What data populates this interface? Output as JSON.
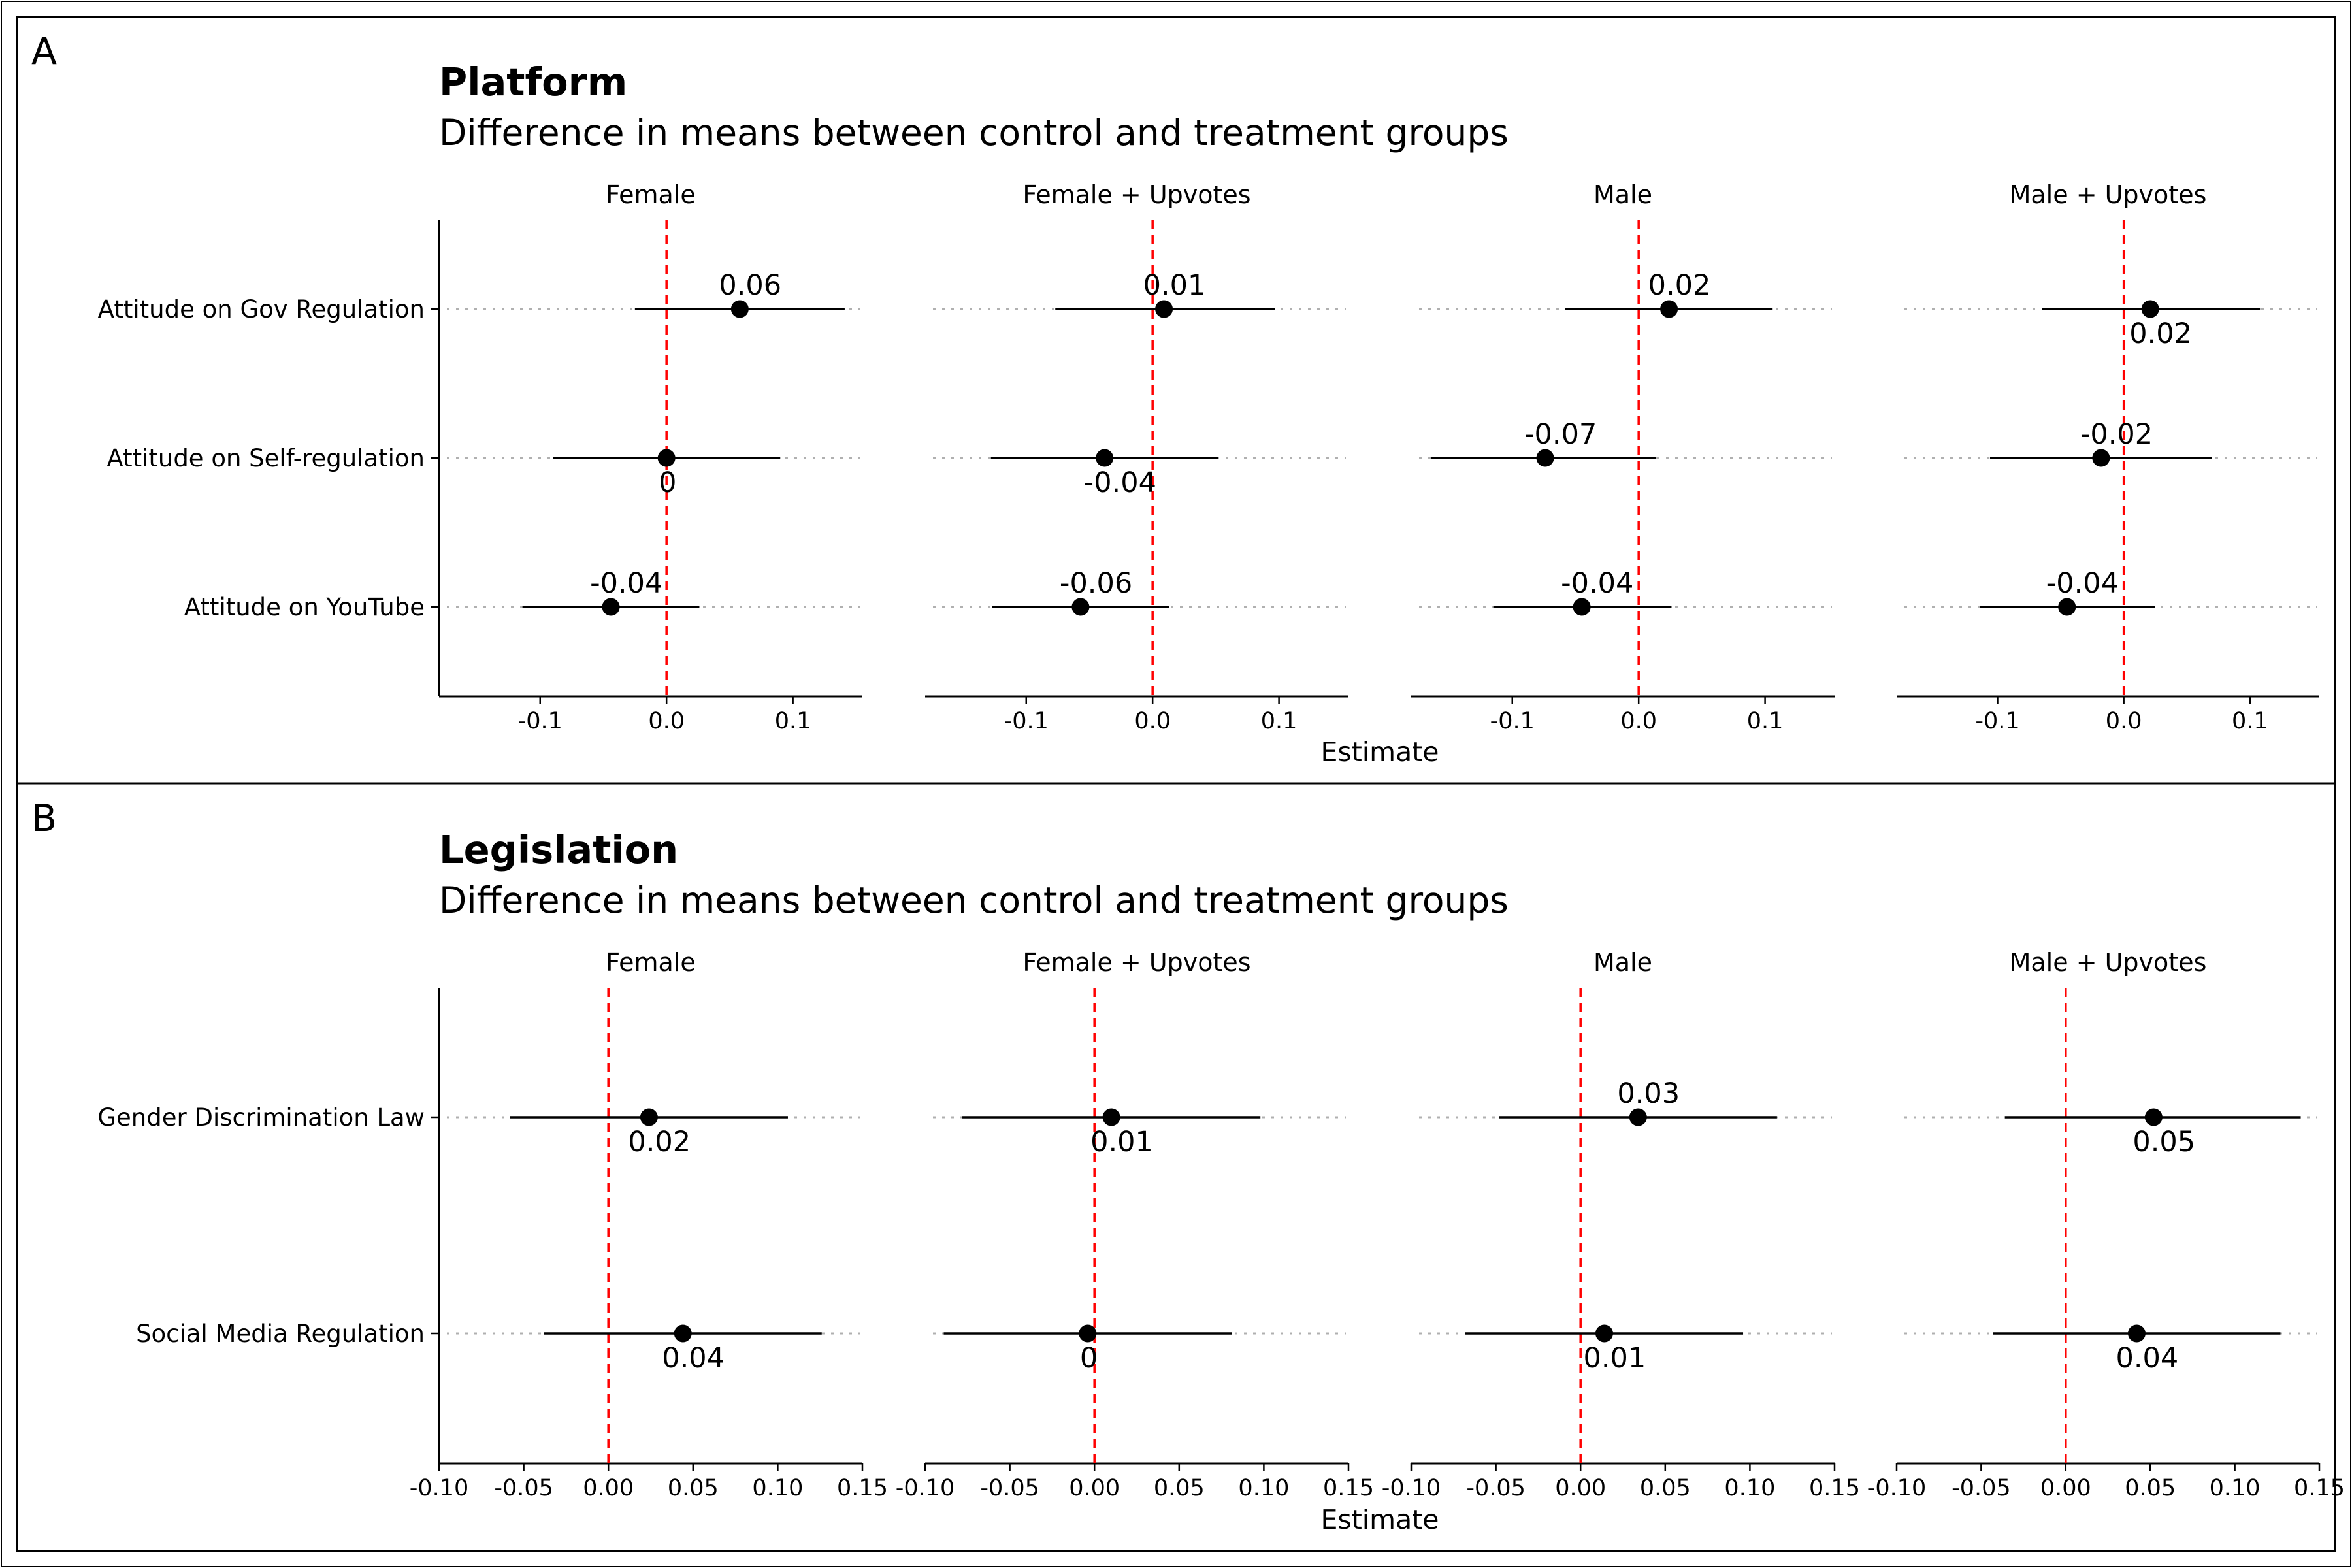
{
  "chart_data": [
    {
      "type": "scatter",
      "panel_letter": "A",
      "title": "Platform",
      "subtitle": "Difference in means between control and treatment groups",
      "xlabel": "Estimate",
      "ylabel": "",
      "xlim": [
        -0.18,
        0.155
      ],
      "xticks": [
        -0.1,
        0.0,
        0.1
      ],
      "xtick_labels": [
        "-0.1",
        "0.0",
        "0.1"
      ],
      "reference_line": 0,
      "categories": [
        "Attitude on Gov Regulation",
        "Attitude on Self-regulation",
        "Attitude on YouTube"
      ],
      "facets": [
        {
          "name": "Female",
          "points": [
            {
              "category": "Attitude on Gov Regulation",
              "estimate": 0.058,
              "ci": [
                -0.025,
                0.141
              ],
              "label": "0.06",
              "label_pos": "above"
            },
            {
              "category": "Attitude on Self-regulation",
              "estimate": 0.0,
              "ci": [
                -0.09,
                0.09
              ],
              "label": "0",
              "label_pos": "below"
            },
            {
              "category": "Attitude on YouTube",
              "estimate": -0.044,
              "ci": [
                -0.114,
                0.026
              ],
              "label": "-0.04",
              "label_pos": "above"
            }
          ]
        },
        {
          "name": "Female + Upvotes",
          "points": [
            {
              "category": "Attitude on Gov Regulation",
              "estimate": 0.009,
              "ci": [
                -0.077,
                0.097
              ],
              "label": "0.01",
              "label_pos": "above"
            },
            {
              "category": "Attitude on Self-regulation",
              "estimate": -0.038,
              "ci": [
                -0.128,
                0.052
              ],
              "label": "-0.04",
              "label_pos": "below"
            },
            {
              "category": "Attitude on YouTube",
              "estimate": -0.057,
              "ci": [
                -0.127,
                0.013
              ],
              "label": "-0.06",
              "label_pos": "above"
            }
          ]
        },
        {
          "name": "Male",
          "points": [
            {
              "category": "Attitude on Gov Regulation",
              "estimate": 0.024,
              "ci": [
                -0.058,
                0.106
              ],
              "label": "0.02",
              "label_pos": "above"
            },
            {
              "category": "Attitude on Self-regulation",
              "estimate": -0.074,
              "ci": [
                -0.164,
                0.014
              ],
              "label": "-0.07",
              "label_pos": "above"
            },
            {
              "category": "Attitude on YouTube",
              "estimate": -0.045,
              "ci": [
                -0.115,
                0.026
              ],
              "label": "-0.04",
              "label_pos": "above"
            }
          ]
        },
        {
          "name": "Male + Upvotes",
          "points": [
            {
              "category": "Attitude on Gov Regulation",
              "estimate": 0.021,
              "ci": [
                -0.065,
                0.108
              ],
              "label": "0.02",
              "label_pos": "below"
            },
            {
              "category": "Attitude on Self-regulation",
              "estimate": -0.018,
              "ci": [
                -0.106,
                0.07
              ],
              "label": "-0.02",
              "label_pos": "above"
            },
            {
              "category": "Attitude on YouTube",
              "estimate": -0.045,
              "ci": [
                -0.114,
                0.025
              ],
              "label": "-0.04",
              "label_pos": "above"
            }
          ]
        }
      ]
    },
    {
      "type": "scatter",
      "panel_letter": "B",
      "title": "Legislation",
      "subtitle": "Difference in means between control and treatment groups",
      "xlabel": "Estimate",
      "ylabel": "",
      "xlim": [
        -0.1,
        0.15
      ],
      "xticks": [
        -0.1,
        -0.05,
        0.0,
        0.05,
        0.1,
        0.15
      ],
      "xtick_labels": [
        "-0.10",
        "-0.05",
        "0.00",
        "0.05",
        "0.10",
        "0.15"
      ],
      "reference_line": 0,
      "categories": [
        "Gender Discrimination Law",
        "Social Media Regulation"
      ],
      "facets": [
        {
          "name": "Female",
          "points": [
            {
              "category": "Gender Discrimination Law",
              "estimate": 0.024,
              "ci": [
                -0.058,
                0.106
              ],
              "label": "0.02",
              "label_pos": "below"
            },
            {
              "category": "Social Media Regulation",
              "estimate": 0.044,
              "ci": [
                -0.038,
                0.126
              ],
              "label": "0.04",
              "label_pos": "below"
            }
          ]
        },
        {
          "name": "Female + Upvotes",
          "points": [
            {
              "category": "Gender Discrimination Law",
              "estimate": 0.01,
              "ci": [
                -0.078,
                0.098
              ],
              "label": "0.01",
              "label_pos": "below"
            },
            {
              "category": "Social Media Regulation",
              "estimate": -0.004,
              "ci": [
                -0.089,
                0.081
              ],
              "label": "0",
              "label_pos": "below"
            }
          ]
        },
        {
          "name": "Male",
          "points": [
            {
              "category": "Gender Discrimination Law",
              "estimate": 0.034,
              "ci": [
                -0.048,
                0.116
              ],
              "label": "0.03",
              "label_pos": "above"
            },
            {
              "category": "Social Media Regulation",
              "estimate": 0.014,
              "ci": [
                -0.068,
                0.096
              ],
              "label": "0.01",
              "label_pos": "below"
            }
          ]
        },
        {
          "name": "Male + Upvotes",
          "points": [
            {
              "category": "Gender Discrimination Law",
              "estimate": 0.052,
              "ci": [
                -0.036,
                0.139
              ],
              "label": "0.05",
              "label_pos": "below"
            },
            {
              "category": "Social Media Regulation",
              "estimate": 0.042,
              "ci": [
                -0.043,
                0.127
              ],
              "label": "0.04",
              "label_pos": "below"
            }
          ]
        }
      ]
    }
  ]
}
